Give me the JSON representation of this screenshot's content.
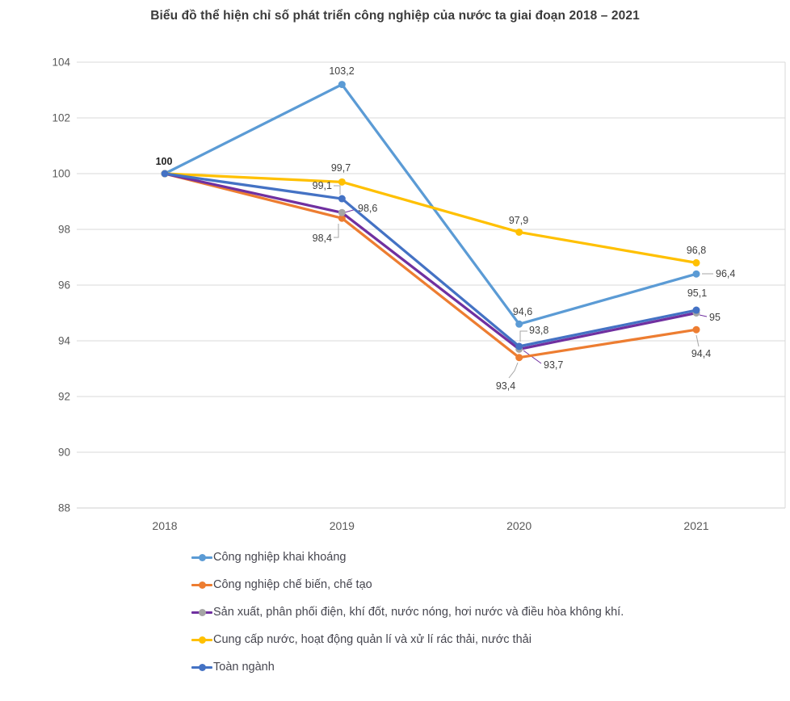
{
  "chart_data": {
    "type": "line",
    "title": "Biểu đồ thể hiện chỉ số phát triển công nghiệp của nước ta giai đoạn 2018 – 2021",
    "categories": [
      "2018",
      "2019",
      "2020",
      "2021"
    ],
    "ylim": [
      88,
      104
    ],
    "ytick_step": 2,
    "yticks": [
      "88",
      "90",
      "92",
      "94",
      "96",
      "98",
      "100",
      "102",
      "104"
    ],
    "grid": true,
    "legend_position": "bottom",
    "decimal_separator": ",",
    "series": [
      {
        "name": "Công nghiệp khai khoáng",
        "color": "#5B9BD5",
        "marker_color": "#5B9BD5",
        "values": [
          100,
          103.2,
          94.6,
          96.4
        ],
        "point_labels": [
          "100",
          "103,2",
          "94,6",
          "96,4"
        ]
      },
      {
        "name": "Công nghiệp chế biến, chế tạo",
        "color": "#ED7D31",
        "marker_color": "#ED7D31",
        "values": [
          100,
          98.4,
          93.4,
          94.4
        ],
        "point_labels": [
          "",
          "98,4",
          "93,4",
          "94,4"
        ]
      },
      {
        "name": "Sản xuất, phân phối điện, khí đốt, nước nóng, hơi nước và điều hòa không khí.",
        "color": "#7030A0",
        "marker_color": "#A5A5A5",
        "values": [
          100,
          98.6,
          93.7,
          95
        ],
        "point_labels": [
          "",
          "98,6",
          "93,7",
          "95"
        ]
      },
      {
        "name": "Cung cấp nước, hoạt động quản lí và xử lí rác thải, nước thải",
        "color": "#FFC000",
        "marker_color": "#FFC000",
        "values": [
          100,
          99.7,
          97.9,
          96.8
        ],
        "point_labels": [
          "",
          "99,7",
          "97,9",
          "96,8"
        ]
      },
      {
        "name": "Toàn ngành",
        "color": "#4472C4",
        "marker_color": "#4472C4",
        "values": [
          100,
          99.1,
          93.8,
          95.1
        ],
        "point_labels": [
          "",
          "99,1",
          "93,8",
          "95,1"
        ]
      }
    ]
  }
}
